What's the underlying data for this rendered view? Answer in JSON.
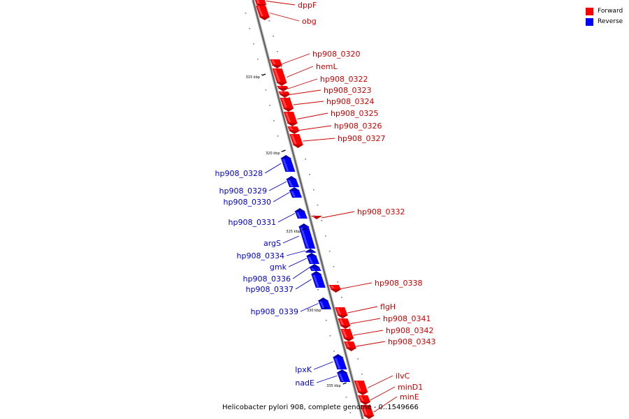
{
  "legend": {
    "forward_label": "Forward",
    "reverse_label": "Reverse"
  },
  "colors": {
    "forward": "#ff0000",
    "forward_dark": "#c00000",
    "forward_light": "#ff6a6a",
    "reverse": "#0000ff",
    "reverse_dark": "#0000b0",
    "reverse_light": "#5a5aff",
    "forward_text": "#cc0000",
    "reverse_text": "#0000cc"
  },
  "caption": "Helicobacter pylori 908, complete genome - 0..1549666",
  "kbp_marks": [
    "315 kbp",
    "320 kbp",
    "325 kbp",
    "330 kbp",
    "335 kbp"
  ],
  "forward_genes": [
    "dppF",
    "obg",
    "hp908_0320",
    "hemL",
    "hp908_0322",
    "hp908_0323",
    "hp908_0324",
    "hp908_0325",
    "hp908_0326",
    "hp908_0327",
    "hp908_0332",
    "hp908_0338",
    "flgH",
    "hp908_0341",
    "hp908_0342",
    "hp908_0343",
    "ilvC",
    "minD1",
    "minE"
  ],
  "reverse_genes": [
    "hp908_0328",
    "hp908_0329",
    "hp908_0330",
    "hp908_0331",
    "argS",
    "hp908_0334",
    "gmk",
    "hp908_0336",
    "hp908_0337",
    "hp908_0339",
    "lpxK",
    "nadE"
  ]
}
